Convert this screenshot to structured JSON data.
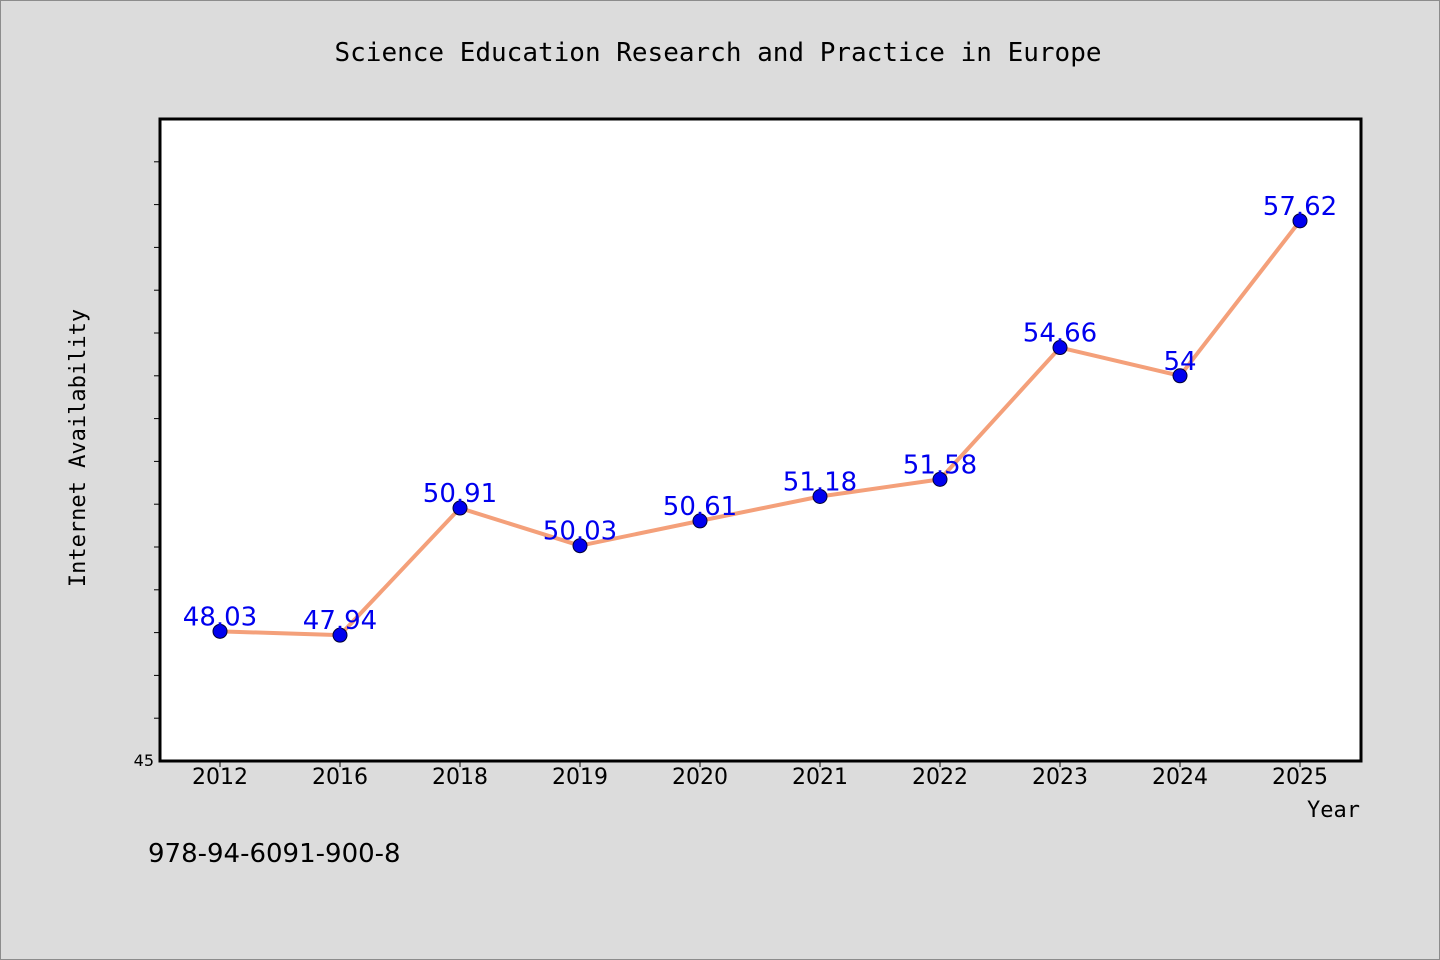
{
  "chart_data": {
    "type": "line",
    "title": "Science Education Research and Practice in Europe",
    "xlabel": "Year",
    "ylabel": "Internet Availability",
    "categories": [
      "2012",
      "2016",
      "2018",
      "2019",
      "2020",
      "2021",
      "2022",
      "2023",
      "2024",
      "2025"
    ],
    "series": [
      {
        "values": [
          48.03,
          47.94,
          50.91,
          50.03,
          50.61,
          51.18,
          51.58,
          54.66,
          54,
          57.62
        ],
        "labels": [
          "48.03",
          "47.94",
          "50.91",
          "50.03",
          "50.61",
          "51.18",
          "51.58",
          "54.66",
          "54",
          "57.62"
        ]
      }
    ],
    "ylim": [
      45,
      60
    ],
    "ytick_labels": [
      "45"
    ],
    "grid": false,
    "footnote": "978-94-6091-900-8",
    "colors": {
      "line": "#f4a07a",
      "marker": "#0000ee",
      "data_label": "#0000ee",
      "plot_bg": "#ffffff",
      "page_bg": "#dcdcdc"
    }
  }
}
